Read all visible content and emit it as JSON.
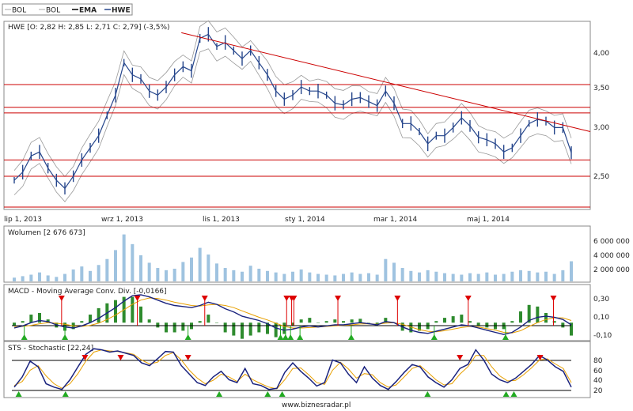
{
  "legend": {
    "items": [
      {
        "label": "BOL",
        "color": "#aaaaaa"
      },
      {
        "label": "BOL",
        "color": "#aaaaaa"
      },
      {
        "label": "EMA",
        "color": "#000000"
      },
      {
        "label": "HWE",
        "color": "#26468c"
      }
    ]
  },
  "footer": {
    "text": "www.biznesradar.pl"
  },
  "colors": {
    "price": "#26468c",
    "band": "#999999",
    "red": "#cc0000",
    "volume": "#9fc3e0",
    "macd_line": "#1a237e",
    "signal_line": "#e8a000",
    "histogram": "#2e8b2e",
    "buy": "#22aa22",
    "sell": "#dd0000"
  },
  "chart_data": [
    {
      "type": "line",
      "title": "HWE [O: 2,82  H: 2,85  L: 2,71  C: 2,79] (-3,5%)",
      "x_ticks": [
        "lip 1, 2013",
        "wrz 1, 2013",
        "lis 1, 2013",
        "sty 1, 2014",
        "mar 1, 2014",
        "maj 1, 2014"
      ],
      "y_ticks": [
        "4,00",
        "3,50",
        "3,00",
        "2,50"
      ],
      "ylim": [
        2.1,
        4.4
      ],
      "horizontal_levels": [
        3.63,
        3.35,
        3.28,
        2.7,
        2.5,
        2.12
      ],
      "trendline": {
        "start": [
          0.3,
          4.27
        ],
        "end": [
          1.0,
          3.05
        ]
      },
      "series": [
        {
          "values": [
            2.45,
            2.55,
            2.75,
            2.8,
            2.6,
            2.45,
            2.35,
            2.5,
            2.7,
            2.85,
            3.0,
            3.25,
            3.5,
            3.9,
            3.75,
            3.7,
            3.55,
            3.5,
            3.6,
            3.75,
            3.85,
            3.8,
            4.2,
            4.25,
            4.1,
            4.15,
            4.05,
            3.95,
            4.05,
            3.9,
            3.75,
            3.55,
            3.45,
            3.5,
            3.6,
            3.55,
            3.55,
            3.5,
            3.4,
            3.38,
            3.45,
            3.47,
            3.42,
            3.37,
            3.55,
            3.4,
            3.15,
            3.15,
            3.05,
            2.9,
            3.0,
            3.0,
            3.1,
            3.22,
            3.12,
            2.98,
            2.95,
            2.9,
            2.8,
            2.85,
            3.0,
            3.15,
            3.2,
            3.18,
            3.1,
            3.1,
            2.79
          ]
        }
      ]
    },
    {
      "type": "bar",
      "title": "Wolumen [2 676 673]",
      "y_ticks": [
        "6 000 000",
        "4 000 000",
        "2 000 000"
      ],
      "ylim": [
        0,
        7000000
      ],
      "values": [
        500000,
        700000,
        900000,
        1200000,
        800000,
        600000,
        1000000,
        1600000,
        2000000,
        1400000,
        2200000,
        3000000,
        4200000,
        6300000,
        5000000,
        3500000,
        2500000,
        1800000,
        1500000,
        1700000,
        2600000,
        3200000,
        4500000,
        3600000,
        2400000,
        1800000,
        1500000,
        1300000,
        2100000,
        1700000,
        1400000,
        1200000,
        1000000,
        1300000,
        1600000,
        1200000,
        1000000,
        900000,
        800000,
        1000000,
        1200000,
        1000000,
        1100000,
        900000,
        3000000,
        2500000,
        1800000,
        1400000,
        1200000,
        1500000,
        1300000,
        1100000,
        1000000,
        900000,
        1100000,
        1000000,
        1200000,
        900000,
        1000000,
        1300000,
        1500000,
        1400000,
        1200000,
        1300000,
        1000000,
        1500000,
        2700000
      ]
    },
    {
      "type": "line",
      "title": "MACD - Moving Average Conv. Div. [-0,0166]",
      "y_ticks": [
        "0,30",
        "0,10",
        "-0,10"
      ],
      "ylim": [
        -0.16,
        0.34
      ],
      "zero_level": 0,
      "series": [
        {
          "name": "MACD",
          "values": [
            -0.05,
            -0.03,
            0.0,
            0.02,
            0.01,
            -0.02,
            -0.04,
            -0.05,
            -0.03,
            0.0,
            0.04,
            0.09,
            0.14,
            0.2,
            0.25,
            0.26,
            0.24,
            0.21,
            0.18,
            0.16,
            0.15,
            0.14,
            0.16,
            0.19,
            0.17,
            0.13,
            0.1,
            0.06,
            0.04,
            0.02,
            -0.01,
            -0.05,
            -0.07,
            -0.06,
            -0.04,
            -0.03,
            -0.04,
            -0.03,
            -0.02,
            -0.02,
            -0.01,
            0.0,
            -0.01,
            -0.02,
            0.01,
            0.0,
            -0.04,
            -0.07,
            -0.09,
            -0.1,
            -0.08,
            -0.06,
            -0.04,
            -0.02,
            -0.03,
            -0.05,
            -0.07,
            -0.09,
            -0.11,
            -0.09,
            -0.04,
            0.02,
            0.05,
            0.06,
            0.05,
            0.03,
            -0.02
          ]
        },
        {
          "name": "Signal",
          "values": [
            -0.04,
            -0.035,
            -0.025,
            -0.01,
            0.0,
            -0.005,
            -0.015,
            -0.03,
            -0.035,
            -0.025,
            -0.005,
            0.03,
            0.07,
            0.12,
            0.17,
            0.21,
            0.23,
            0.225,
            0.21,
            0.19,
            0.175,
            0.16,
            0.155,
            0.165,
            0.17,
            0.16,
            0.14,
            0.11,
            0.08,
            0.05,
            0.025,
            -0.005,
            -0.035,
            -0.05,
            -0.05,
            -0.045,
            -0.04,
            -0.035,
            -0.03,
            -0.025,
            -0.02,
            -0.012,
            -0.01,
            -0.015,
            -0.005,
            0.0,
            -0.015,
            -0.04,
            -0.065,
            -0.08,
            -0.085,
            -0.075,
            -0.06,
            -0.045,
            -0.035,
            -0.04,
            -0.055,
            -0.07,
            -0.09,
            -0.095,
            -0.075,
            -0.035,
            0.0,
            0.03,
            0.045,
            0.045,
            0.02
          ]
        }
      ],
      "buy_signals": [
        1.8,
        9.1,
        31.2,
        47.8,
        48.7,
        49.6,
        51.3,
        60.5,
        75.4,
        88.2
      ],
      "sell_signals": [
        8.5,
        22.1,
        34.2,
        48.9,
        49.8,
        50.2,
        58.1,
        68.8,
        81.5,
        96.8
      ]
    },
    {
      "type": "line",
      "title": "STS - Stochastic [22,24]",
      "y_ticks": [
        "80",
        "60",
        "40",
        "20"
      ],
      "ylim": [
        5,
        100
      ],
      "overbought": 80,
      "oversold": 20,
      "series": [
        {
          "name": "%K",
          "values": [
            22,
            40,
            68,
            58,
            28,
            22,
            18,
            35,
            58,
            80,
            90,
            88,
            84,
            86,
            82,
            78,
            65,
            60,
            72,
            85,
            84,
            60,
            45,
            30,
            25,
            40,
            50,
            35,
            30,
            55,
            28,
            25,
            18,
            20,
            48,
            65,
            50,
            38,
            24,
            30,
            70,
            65,
            45,
            30,
            58,
            38,
            25,
            18,
            32,
            48,
            62,
            58,
            40,
            30,
            22,
            35,
            55,
            62,
            88,
            70,
            45,
            35,
            30,
            38,
            50,
            62,
            78,
            70,
            58,
            50,
            22
          ]
        },
        {
          "name": "%D",
          "values": [
            25,
            32,
            52,
            60,
            42,
            28,
            20,
            28,
            46,
            68,
            84,
            88,
            86,
            85,
            83,
            80,
            70,
            63,
            66,
            78,
            83,
            70,
            52,
            38,
            28,
            34,
            45,
            40,
            32,
            45,
            35,
            28,
            22,
            19,
            35,
            55,
            56,
            44,
            30,
            27,
            52,
            66,
            54,
            38,
            46,
            44,
            30,
            22,
            26,
            40,
            55,
            60,
            48,
            35,
            26,
            28,
            45,
            58,
            78,
            78,
            58,
            42,
            33,
            34,
            44,
            56,
            70,
            72,
            63,
            55,
            30
          ]
        }
      ],
      "buy_signals": [
        0.8,
        9.2,
        36.8,
        45.5,
        48.1,
        74.2,
        88.3,
        89.7
      ],
      "sell_signals": [
        12.7,
        19.1,
        31.2,
        80.0,
        94.4
      ]
    }
  ]
}
